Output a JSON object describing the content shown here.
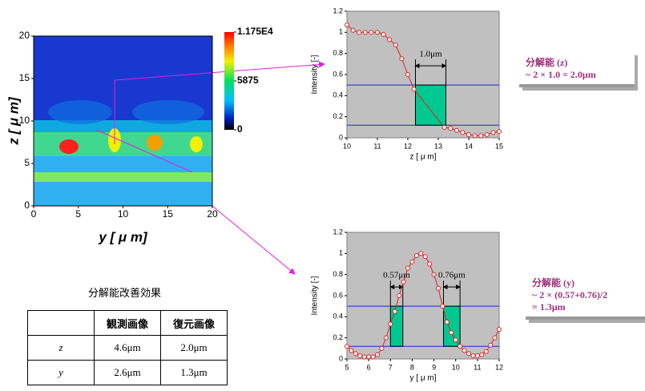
{
  "chart_data": [
    {
      "type": "contour",
      "xlabel": "y [ μ m]",
      "ylabel": "z [ μ m]",
      "xlim": [
        0,
        20
      ],
      "ylim": [
        0,
        20
      ],
      "xticks": [
        0,
        5,
        10,
        15,
        20
      ],
      "yticks": [
        0,
        5,
        10,
        15,
        20
      ],
      "colorbar": {
        "lim": [
          0,
          11750
        ],
        "ticks": [
          0,
          5875,
          {
            "value": 11750,
            "label": "1.175E4"
          }
        ]
      }
    },
    {
      "type": "line",
      "xlabel": "z [ μ m]",
      "ylabel": "Intensity [-]",
      "color": "#e02020",
      "xlim": [
        10,
        15
      ],
      "ylim": [
        0,
        1.2
      ],
      "xticks": [
        10,
        11,
        12,
        13,
        14,
        15
      ],
      "yticks": [
        0,
        0.2,
        0.4,
        0.6,
        0.8,
        1,
        1.2
      ],
      "x": [
        10,
        10.2,
        10.4,
        10.6,
        10.8,
        11,
        11.2,
        11.4,
        11.6,
        11.8,
        12,
        12.2,
        13.2,
        13.4,
        13.6,
        13.8,
        14,
        14.2,
        14.4,
        14.6,
        14.8,
        15
      ],
      "values": [
        1.07,
        1.02,
        1.0,
        1.0,
        1.0,
        1.0,
        0.98,
        0.93,
        0.88,
        0.75,
        0.6,
        0.46,
        0.1,
        0.09,
        0.07,
        0.05,
        0.03,
        0.02,
        0.02,
        0.03,
        0.05,
        0.06
      ],
      "hlines": [
        0.5,
        0.12
      ],
      "bands": [
        {
          "x0": 12.25,
          "x1": 13.25,
          "y0": 0.12,
          "y1": 0.5,
          "label": "1.0μm"
        }
      ]
    },
    {
      "type": "line",
      "xlabel": "y [ μ m]",
      "ylabel": "Intensity [-]",
      "color": "#e02020",
      "xlim": [
        5,
        12
      ],
      "ylim": [
        0,
        1.2
      ],
      "xticks": [
        5,
        6,
        7,
        8,
        9,
        10,
        11,
        12
      ],
      "yticks": [
        0,
        0.2,
        0.4,
        0.6,
        0.8,
        1,
        1.2
      ],
      "x": [
        5,
        5.2,
        5.4,
        5.6,
        5.8,
        6,
        6.2,
        6.4,
        6.6,
        6.8,
        7,
        7.2,
        7.4,
        7.6,
        7.8,
        8,
        8.2,
        8.4,
        8.6,
        8.8,
        9,
        9.2,
        9.4,
        9.6,
        9.8,
        10,
        10.2,
        10.4,
        10.6,
        10.8,
        11,
        11.2,
        11.4,
        11.6,
        11.8,
        12
      ],
      "values": [
        0.12,
        0.08,
        0.05,
        0.03,
        0.02,
        0.02,
        0.02,
        0.04,
        0.1,
        0.2,
        0.33,
        0.45,
        0.6,
        0.73,
        0.86,
        0.92,
        0.98,
        1.0,
        0.97,
        0.9,
        0.8,
        0.67,
        0.5,
        0.35,
        0.25,
        0.18,
        0.12,
        0.08,
        0.05,
        0.03,
        0.03,
        0.04,
        0.07,
        0.13,
        0.2,
        0.28
      ],
      "hlines": [
        0.5,
        0.12
      ],
      "bands": [
        {
          "x0": 7.0,
          "x1": 7.57,
          "y0": 0.12,
          "y1": 0.5,
          "label": "0.57μm"
        },
        {
          "x0": 9.44,
          "x1": 10.2,
          "y0": 0.12,
          "y1": 0.5,
          "label": "0.76μm"
        }
      ]
    }
  ],
  "table": {
    "title": "分解能改善効果",
    "headers": [
      "観測画像",
      "復元画像"
    ],
    "rows": [
      [
        "z",
        "4.6μm",
        "2.0μm"
      ],
      [
        "y",
        "2.6μm",
        "1.3μm"
      ]
    ]
  },
  "boxes": [
    {
      "title": "分解能 (z)",
      "lines": [
        "~ 2 × 1.0 = 2.0μm"
      ]
    },
    {
      "title": "分解能 (y)",
      "lines": [
        "~ 2 × (0.57+0.76)/2",
        "= 1.3μm"
      ]
    }
  ]
}
